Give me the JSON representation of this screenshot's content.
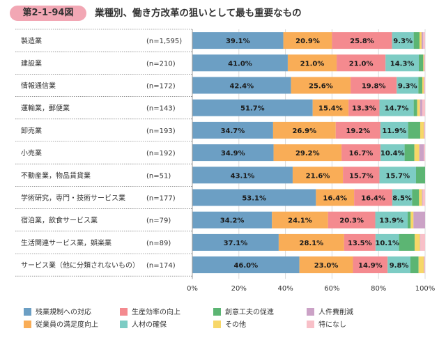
{
  "figure": {
    "number": "第2-1-94図",
    "title": "業種別、働き方改革の狙いとして最も重要なもの"
  },
  "colors": {
    "bar_fills": [
      "#6c9fc4",
      "#f9ad57",
      "#f48a8f",
      "#7dccc4",
      "#5cb573",
      "#f7d768",
      "#cba2c6",
      "#f8c0c8"
    ],
    "label_text": "#1a1a1a",
    "grid": "#d9d9d9",
    "row_separator": "#555555",
    "row_label_bg": "#ffffff"
  },
  "chart_data": {
    "type": "bar",
    "orientation": "horizontal",
    "stacked": true,
    "xlim": [
      0,
      100
    ],
    "xticks": [
      "0%",
      "20%",
      "40%",
      "60%",
      "80%",
      "100%"
    ],
    "grid": true,
    "legend_position": "bottom",
    "categories": [
      {
        "name": "製造業",
        "n": "(n=1,595)"
      },
      {
        "name": "建設業",
        "n": "(n=210)"
      },
      {
        "name": "情報通信業",
        "n": "(n=172)"
      },
      {
        "name": "運輸業，郵便業",
        "n": "(n=143)"
      },
      {
        "name": "卸売業",
        "n": "(n=193)"
      },
      {
        "name": "小売業",
        "n": "(n=192)"
      },
      {
        "name": "不動産業，物品賃貸業",
        "n": "(n=51)"
      },
      {
        "name": "学術研究，専門・技術サービス業",
        "n": "(n=177)"
      },
      {
        "name": "宿泊業，飲食サービス業",
        "n": "(n=79)"
      },
      {
        "name": "生活関連サービス業，娯楽業",
        "n": "(n=89)"
      },
      {
        "name": "サービス業（他に分類されないもの）",
        "n": "(n=174)"
      }
    ],
    "series": [
      {
        "name": "残業規制への対応",
        "values": [
          39.1,
          41.0,
          42.4,
          51.7,
          34.7,
          34.9,
          43.1,
          53.1,
          34.2,
          37.1,
          46.0
        ]
      },
      {
        "name": "従業員の満足度向上",
        "values": [
          20.9,
          21.0,
          25.6,
          15.4,
          26.9,
          29.2,
          21.6,
          16.4,
          24.1,
          28.1,
          23.0
        ]
      },
      {
        "name": "生産効率の向上",
        "values": [
          25.8,
          21.0,
          19.8,
          13.3,
          19.2,
          16.7,
          15.7,
          16.4,
          20.3,
          13.5,
          14.9
        ]
      },
      {
        "name": "人材の確保",
        "values": [
          9.3,
          14.3,
          9.3,
          14.7,
          11.9,
          10.4,
          15.7,
          8.5,
          13.9,
          10.1,
          9.8
        ]
      },
      {
        "name": "創意工夫の促進",
        "values": [
          2.5,
          1.9,
          1.7,
          1.5,
          5.2,
          4.2,
          3.9,
          3.0,
          1.3,
          6.7,
          3.5
        ]
      },
      {
        "name": "その他",
        "values": [
          0.9,
          0.3,
          0.6,
          1.2,
          1.6,
          2.1,
          0,
          1.3,
          1.2,
          2.3,
          2.3
        ]
      },
      {
        "name": "人件費削減",
        "values": [
          0.7,
          0.2,
          0.2,
          1.0,
          0.2,
          2.0,
          0,
          0.3,
          5.0,
          0.2,
          0.2
        ]
      },
      {
        "name": "特になし",
        "values": [
          0.8,
          0.3,
          0.4,
          1.2,
          0.3,
          0.5,
          0,
          1.0,
          0,
          2.0,
          0.3
        ]
      }
    ],
    "legend_layout": [
      [
        "残業規制への対応",
        "生産効率の向上",
        "創意工夫の促進",
        "人件費削減"
      ],
      [
        "従業員の満足度向上",
        "人材の確保",
        "その他",
        "特になし"
      ]
    ]
  }
}
